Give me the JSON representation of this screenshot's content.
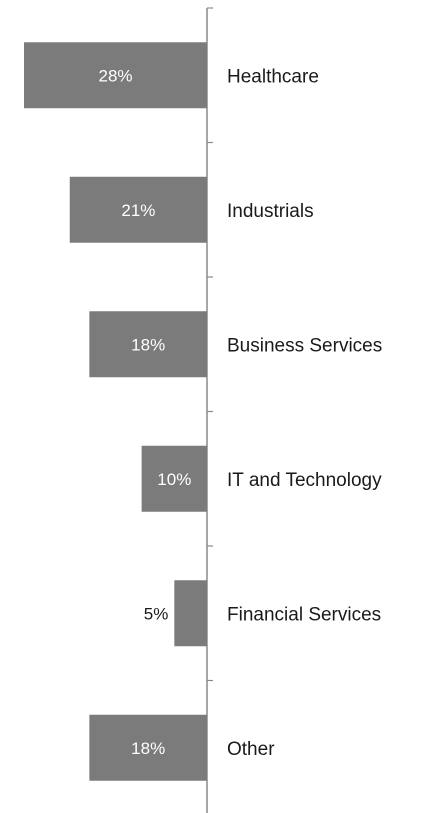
{
  "chart_data": {
    "type": "bar",
    "orientation": "horizontal",
    "categories": [
      "Healthcare",
      "Industrials",
      "Business Services",
      "IT and Technology",
      "Financial Services",
      "Other"
    ],
    "values": [
      28,
      21,
      18,
      10,
      5,
      18
    ],
    "value_labels": [
      "28%",
      "21%",
      "18%",
      "10%",
      "5%",
      "18%"
    ],
    "bar_color": "#7b7b7b",
    "axis_color": "#8a8a8a",
    "xlim": [
      0,
      28
    ],
    "grid": false,
    "legend": "none"
  }
}
